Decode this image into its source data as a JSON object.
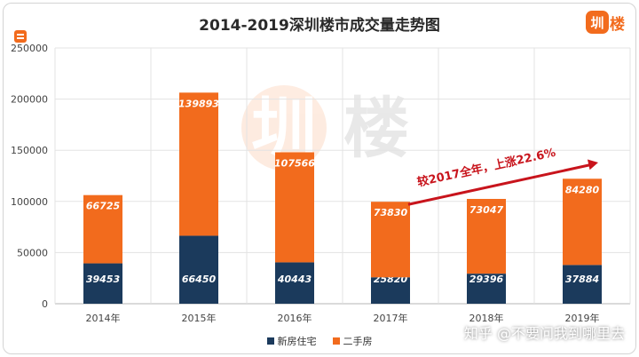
{
  "logo": {
    "mark": "圳",
    "tail": "楼"
  },
  "watermark": "知乎 @不要问我到哪里去",
  "bg_watermark": {
    "mark": "圳",
    "tail": "楼"
  },
  "colors": {
    "new_house": "#1b3a5c",
    "second_hand": "#f26b1d",
    "annotation": "#c8141c",
    "grid": "#e3e3e3"
  },
  "chart_data": {
    "type": "bar",
    "stacked": true,
    "title": "2014-2019深圳楼市成交量走势图",
    "categories": [
      "2014年",
      "2015年",
      "2016年",
      "2017年",
      "2018年",
      "2019年"
    ],
    "series": [
      {
        "name": "新房住宅",
        "values": [
          39453,
          66450,
          40443,
          25820,
          29396,
          37884
        ]
      },
      {
        "name": "二手房",
        "values": [
          66725,
          139893,
          107566,
          73830,
          73047,
          84280
        ]
      }
    ],
    "ylim": [
      0,
      250000
    ],
    "yticks": [
      "0",
      "50000",
      "100000",
      "150000",
      "200000",
      "250000"
    ],
    "grid": true,
    "legend": "bottom",
    "annotation": {
      "text": "较2017全年，上涨22.6%",
      "from": "2017年",
      "to": "2019年",
      "arrow": true
    }
  }
}
